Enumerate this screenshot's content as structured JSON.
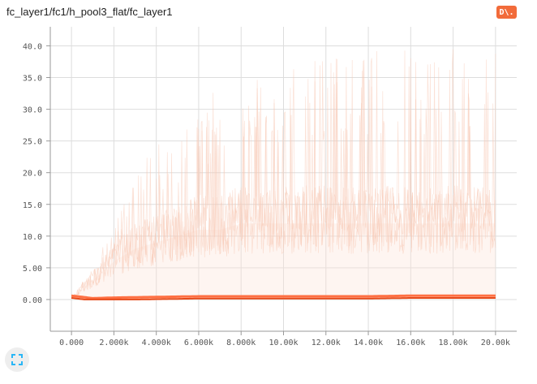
{
  "header": {
    "title": "fc_layer1/fc1/h_pool3_flat/fc_layer1",
    "badge_label": "D\\."
  },
  "controls": {
    "expand_icon": "fullscreen-icon"
  },
  "colors": {
    "accent": "#f26b3a",
    "series_main": "#ff7043",
    "series_faint": "#fbe3d8",
    "grid": "#dddddd"
  },
  "chart_data": {
    "type": "line",
    "title": "fc_layer1/fc1/h_pool3_flat/fc_layer1",
    "xlabel": "",
    "ylabel": "",
    "xlim": [
      -1000,
      21000
    ],
    "ylim": [
      -5,
      43
    ],
    "x_ticks": [
      0,
      2000,
      4000,
      6000,
      8000,
      10000,
      12000,
      14000,
      16000,
      18000,
      20000
    ],
    "x_tick_labels": [
      "0.000",
      "2.000k",
      "4.000k",
      "6.000k",
      "8.000k",
      "10.00k",
      "12.00k",
      "14.00k",
      "16.00k",
      "18.00k",
      "20.00k"
    ],
    "y_ticks": [
      0,
      5,
      10,
      15,
      20,
      25,
      30,
      35,
      40
    ],
    "y_tick_labels": [
      "0.00",
      "5.00",
      "10.0",
      "15.0",
      "20.0",
      "25.0",
      "30.0",
      "35.0",
      "40.0"
    ],
    "grid": true,
    "legend": "none",
    "series": [
      {
        "style": "faint-band-upper",
        "x": [
          0,
          1000,
          2000,
          3000,
          4000,
          5000,
          6000,
          7000,
          8000,
          9000,
          10000,
          11000,
          12000,
          13000,
          14000,
          15000,
          16000,
          17000,
          18000,
          19000,
          20000
        ],
        "values": [
          0.5,
          5,
          12,
          20,
          25,
          25,
          30,
          34,
          32,
          36,
          38,
          38,
          38,
          40,
          40,
          40,
          40,
          40,
          40,
          40,
          40
        ]
      },
      {
        "style": "faint-band-typical",
        "x": [
          0,
          1000,
          2000,
          3000,
          4000,
          5000,
          6000,
          7000,
          8000,
          9000,
          10000,
          11000,
          12000,
          13000,
          14000,
          15000,
          16000,
          17000,
          18000,
          19000,
          20000
        ],
        "values": [
          0.2,
          3,
          6,
          8,
          9,
          10,
          11,
          11,
          12,
          12,
          12,
          12,
          12,
          12,
          12,
          12,
          12,
          12,
          12,
          12,
          12
        ]
      },
      {
        "style": "main-lines",
        "x": [
          0,
          1000,
          2000,
          4000,
          6000,
          8000,
          10000,
          12000,
          14000,
          16000,
          18000,
          20000
        ],
        "values": [
          0.6,
          0.2,
          0.3,
          0.4,
          0.5,
          0.5,
          0.5,
          0.5,
          0.5,
          0.6,
          0.6,
          0.6
        ]
      }
    ]
  }
}
